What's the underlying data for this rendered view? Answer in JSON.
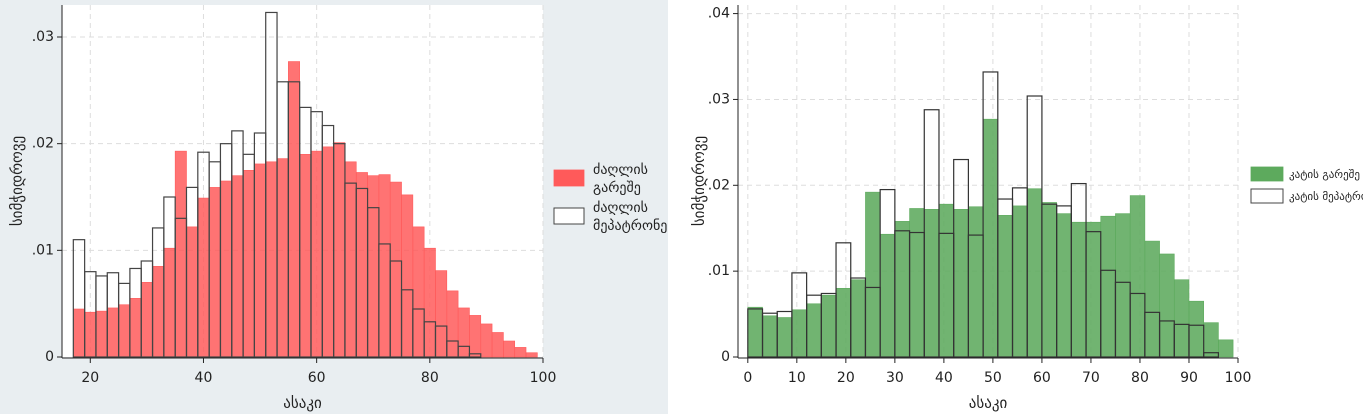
{
  "chart_data": [
    {
      "type": "bar",
      "subtype": "overlaid-histogram",
      "xlabel": "ასაკი",
      "ylabel": "სიმჭიდროვე",
      "xlim": [
        15,
        100
      ],
      "ylim": [
        0,
        0.033
      ],
      "xticks": [
        "20",
        "40",
        "60",
        "80",
        "100"
      ],
      "yticks": [
        "0",
        ".01",
        ".02",
        ".03"
      ],
      "grid": true,
      "legend_position": "right",
      "series": [
        {
          "name": "ძაღლის გარეშე",
          "color": "#ff5a5a",
          "fill": true,
          "x": [
            18,
            20,
            22,
            24,
            26,
            28,
            30,
            32,
            34,
            36,
            38,
            40,
            42,
            44,
            46,
            48,
            50,
            52,
            54,
            56,
            58,
            60,
            62,
            64,
            66,
            68,
            70,
            72,
            74,
            76,
            78,
            80,
            82,
            84,
            86,
            88,
            90,
            92,
            94,
            96,
            98
          ],
          "values": [
            0.0045,
            0.0042,
            0.0043,
            0.0046,
            0.0049,
            0.0055,
            0.007,
            0.0085,
            0.0102,
            0.0193,
            0.0122,
            0.0149,
            0.0159,
            0.0165,
            0.017,
            0.0175,
            0.0181,
            0.0183,
            0.0186,
            0.0277,
            0.019,
            0.0193,
            0.0197,
            0.0201,
            0.0183,
            0.0173,
            0.017,
            0.0171,
            0.0164,
            0.0152,
            0.0122,
            0.0102,
            0.0081,
            0.0062,
            0.0046,
            0.0039,
            0.0031,
            0.0023,
            0.0015,
            0.0009,
            0.0004
          ]
        },
        {
          "name": "ძაღლის მეპატრონე",
          "color": "#444444",
          "fill": false,
          "x": [
            18,
            20,
            22,
            24,
            26,
            28,
            30,
            32,
            34,
            36,
            38,
            40,
            42,
            44,
            46,
            48,
            50,
            52,
            54,
            56,
            58,
            60,
            62,
            64,
            66,
            68,
            70,
            72,
            74,
            76,
            78,
            80,
            82,
            84,
            86,
            88
          ],
          "values": [
            0.011,
            0.008,
            0.0076,
            0.0079,
            0.0069,
            0.0083,
            0.009,
            0.0121,
            0.015,
            0.013,
            0.0159,
            0.0192,
            0.0183,
            0.02,
            0.0212,
            0.019,
            0.021,
            0.0323,
            0.0258,
            0.0258,
            0.0234,
            0.023,
            0.0217,
            0.02,
            0.0163,
            0.0158,
            0.014,
            0.0106,
            0.009,
            0.0063,
            0.0045,
            0.0033,
            0.0029,
            0.0015,
            0.001,
            0.0003
          ]
        }
      ]
    },
    {
      "type": "bar",
      "subtype": "overlaid-histogram",
      "xlabel": "ასაკი",
      "ylabel": "სიმჭიდროვე",
      "xlim": [
        -2,
        100
      ],
      "ylim": [
        0,
        0.041
      ],
      "xticks": [
        "0",
        "10",
        "20",
        "30",
        "40",
        "50",
        "60",
        "70",
        "80",
        "90",
        "100"
      ],
      "yticks": [
        "0",
        ".01",
        ".02",
        ".03",
        ".04"
      ],
      "grid": true,
      "legend_position": "right",
      "series": [
        {
          "name": "კატის გარეშე",
          "color": "#5daa5d",
          "fill": true,
          "x": [
            1.5,
            4.5,
            7.5,
            10.5,
            13.5,
            16.5,
            19.5,
            22.5,
            25.5,
            28.5,
            31.5,
            34.5,
            37.5,
            40.5,
            43.5,
            46.5,
            49.5,
            52.5,
            55.5,
            58.5,
            61.5,
            64.5,
            67.5,
            70.5,
            73.5,
            76.5,
            79.5,
            82.5,
            85.5,
            88.5,
            91.5,
            94.5,
            97.5
          ],
          "values": [
            0.0058,
            0.0048,
            0.0046,
            0.0055,
            0.0062,
            0.0072,
            0.008,
            0.009,
            0.0192,
            0.0143,
            0.0158,
            0.0173,
            0.0172,
            0.0178,
            0.0172,
            0.0175,
            0.0277,
            0.0165,
            0.0176,
            0.0196,
            0.018,
            0.0167,
            0.0157,
            0.0157,
            0.0164,
            0.0167,
            0.0188,
            0.0135,
            0.012,
            0.009,
            0.0065,
            0.004,
            0.002
          ],
          "note": "bar centers are the bin midpoints of the printed 0-100 axis"
        },
        {
          "name": "კატის მეპატრონე",
          "color": "#333333",
          "fill": false,
          "x": [
            1.5,
            4.5,
            7.5,
            10.5,
            13.5,
            16.5,
            19.5,
            22.5,
            25.5,
            28.5,
            31.5,
            34.5,
            37.5,
            40.5,
            43.5,
            46.5,
            49.5,
            52.5,
            55.5,
            58.5,
            61.5,
            64.5,
            67.5,
            70.5,
            73.5,
            76.5,
            79.5,
            82.5,
            85.5,
            88.5,
            91.5,
            94.5
          ],
          "values": [
            0.0056,
            0.0051,
            0.0053,
            0.0098,
            0.0072,
            0.0074,
            0.0133,
            0.0092,
            0.0081,
            0.0195,
            0.0147,
            0.0145,
            0.0288,
            0.0144,
            0.023,
            0.0142,
            0.0332,
            0.0184,
            0.0197,
            0.0304,
            0.0178,
            0.0176,
            0.0202,
            0.0146,
            0.0101,
            0.0087,
            0.0074,
            0.0052,
            0.0042,
            0.0038,
            0.0037,
            0.0005
          ]
        }
      ]
    }
  ]
}
